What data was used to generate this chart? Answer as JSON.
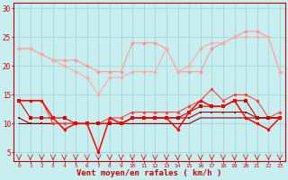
{
  "x": [
    0,
    1,
    2,
    3,
    4,
    5,
    6,
    7,
    8,
    9,
    10,
    11,
    12,
    13,
    14,
    15,
    16,
    17,
    18,
    19,
    20,
    21,
    22,
    23
  ],
  "line1": [
    23,
    23,
    22,
    21,
    21,
    21,
    20,
    19,
    19,
    19,
    24,
    24,
    24,
    23,
    19,
    19,
    19,
    23,
    24,
    25,
    26,
    26,
    25,
    19
  ],
  "line2": [
    23,
    23,
    22,
    21,
    20,
    19,
    18,
    15,
    18,
    18,
    19,
    19,
    19,
    23,
    19,
    20,
    23,
    24,
    24,
    25,
    25,
    25,
    25,
    19
  ],
  "line3": [
    14,
    14,
    14,
    10,
    10,
    10,
    10,
    10,
    11,
    11,
    12,
    12,
    12,
    12,
    12,
    13,
    14,
    16,
    14,
    15,
    15,
    14,
    11,
    12
  ],
  "line4": [
    14,
    14,
    14,
    11,
    9,
    10,
    10,
    5,
    11,
    10,
    11,
    11,
    11,
    11,
    9,
    12,
    14,
    13,
    13,
    14,
    11,
    10,
    9,
    11
  ],
  "line5": [
    14,
    11,
    11,
    11,
    11,
    10,
    10,
    10,
    10,
    10,
    11,
    11,
    11,
    11,
    11,
    12,
    13,
    13,
    13,
    14,
    14,
    11,
    11,
    11
  ],
  "line6": [
    11,
    10,
    10,
    10,
    10,
    10,
    10,
    10,
    10,
    10,
    11,
    11,
    11,
    11,
    11,
    11,
    12,
    12,
    12,
    12,
    12,
    11,
    11,
    11
  ],
  "line7": [
    10,
    10,
    10,
    10,
    10,
    10,
    10,
    10,
    10,
    10,
    10,
    10,
    10,
    10,
    10,
    10,
    11,
    11,
    11,
    11,
    11,
    11,
    11,
    11
  ],
  "bg_color": "#c8eef0",
  "grid_color": "#a0d8d8",
  "line1_color": "#ff9999",
  "line2_color": "#ffaaaa",
  "line3_color": "#ff4444",
  "line4_color": "#ff0000",
  "line5_color": "#cc0000",
  "line6_color": "#aa0000",
  "line7_color": "#880000",
  "xlabel": "Vent moyen/en rafales ( km/h )",
  "ylabel_ticks": [
    5,
    10,
    15,
    20,
    25,
    30
  ],
  "ylim": [
    3.5,
    31
  ],
  "xlim": [
    -0.5,
    23.5
  ]
}
